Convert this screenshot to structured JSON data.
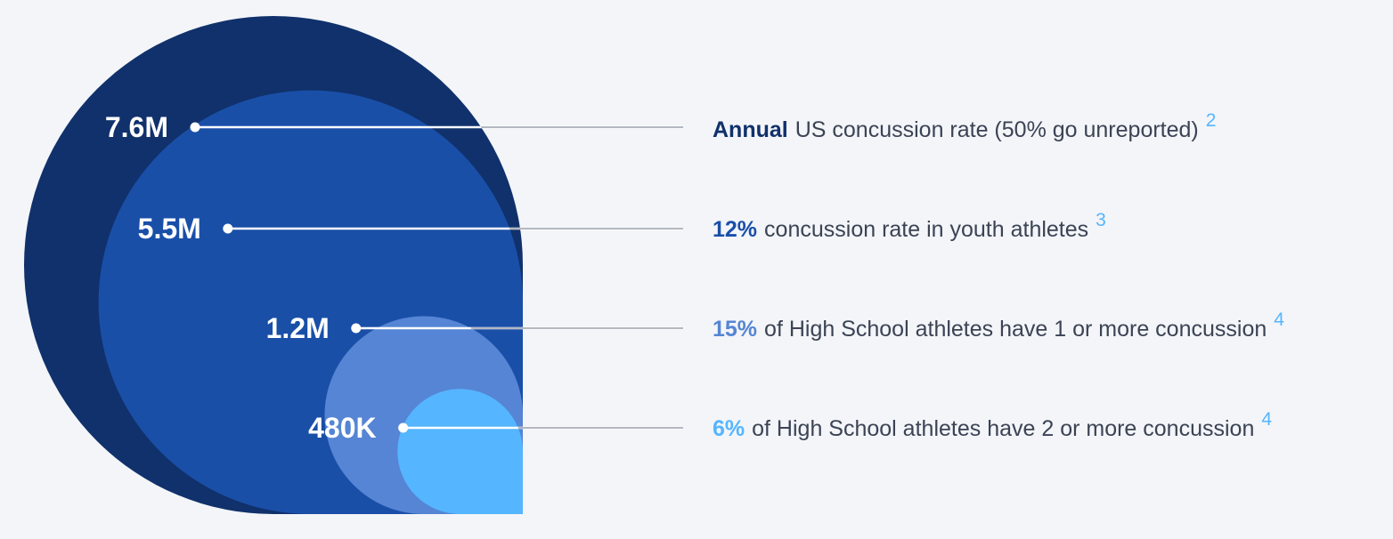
{
  "chart_data": {
    "type": "nested-bubble",
    "categories": [
      "7.6M",
      "5.5M",
      "1.2M",
      "480K"
    ],
    "values": [
      7600000,
      5500000,
      1200000,
      480000
    ],
    "value_labels": [
      "7.6M",
      "5.5M",
      "1.2M",
      "480K"
    ],
    "colors": [
      "#10316b",
      "#1a4fa8",
      "#5585d4",
      "#55b5ff"
    ],
    "rows": [
      {
        "highlight": "Annual",
        "text": "US concussion rate (50% go unreported)",
        "note": "2",
        "color": "#10316b"
      },
      {
        "highlight": "12%",
        "text": "concussion rate in youth athletes",
        "note": "3",
        "color": "#1a4fa8"
      },
      {
        "highlight": "15%",
        "text": "of High School athletes have 1 or more concussion",
        "note": "4",
        "color": "#5585d4"
      },
      {
        "highlight": "6%",
        "text": "of High School athletes have 2 or more concussion",
        "note": "4",
        "color": "#55b5ff"
      }
    ],
    "legend": "right"
  }
}
